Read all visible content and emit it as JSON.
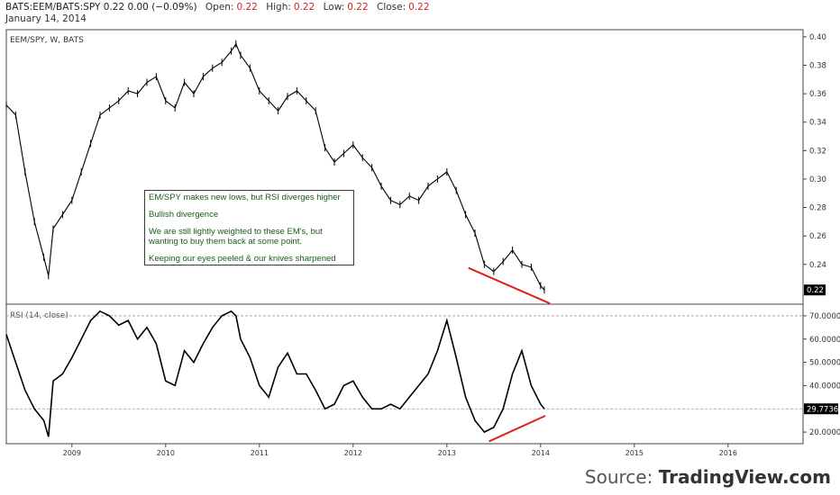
{
  "header": {
    "symbol_line": "BATS:EEM/BATS:SPY 0.22 0.00 (−0.09%)",
    "open_label": "Open:",
    "open_value": "0.22",
    "high_label": "High:",
    "high_value": "0.22",
    "low_label": "Low:",
    "low_value": "0.22",
    "close_label": "Close:",
    "close_value": "0.22",
    "date": "January 14, 2014"
  },
  "annotation": {
    "lines": [
      "EM/SPY makes new lows, but RSI diverges higher",
      "Bullish divergence",
      "We are still lightly weighted to these EM's, but wanting to buy them back at some point.",
      "Keeping our eyes peeled & our knives sharpened"
    ]
  },
  "source": {
    "prefix": "Source:",
    "brand": "TradingView.com"
  },
  "colors": {
    "price": "#000000",
    "rsi": "#000000",
    "trendline": "#e02020",
    "note_text": "#1a5c1a",
    "grid_dash": "#999999"
  },
  "chart_data": [
    {
      "type": "line",
      "title": "EEM/SPY, W, BATS",
      "x_ticks": [
        "2009",
        "2010",
        "2011",
        "2012",
        "2013",
        "2014",
        "2015",
        "2016"
      ],
      "y_ticks": [
        "0.40",
        "0.38",
        "0.36",
        "0.34",
        "0.32",
        "0.30",
        "0.28",
        "0.26",
        "0.24"
      ],
      "ylim": [
        0.212,
        0.405
      ],
      "last_value_label": "0.22",
      "x": [
        2008.3,
        2008.4,
        2008.5,
        2008.6,
        2008.7,
        2008.75,
        2008.8,
        2008.9,
        2009.0,
        2009.1,
        2009.2,
        2009.3,
        2009.4,
        2009.5,
        2009.6,
        2009.7,
        2009.8,
        2009.9,
        2010.0,
        2010.1,
        2010.2,
        2010.3,
        2010.4,
        2010.5,
        2010.6,
        2010.7,
        2010.75,
        2010.8,
        2010.9,
        2011.0,
        2011.1,
        2011.2,
        2011.3,
        2011.4,
        2011.5,
        2011.6,
        2011.7,
        2011.8,
        2011.9,
        2012.0,
        2012.1,
        2012.2,
        2012.3,
        2012.4,
        2012.5,
        2012.6,
        2012.7,
        2012.8,
        2012.9,
        2013.0,
        2013.1,
        2013.2,
        2013.3,
        2013.4,
        2013.5,
        2013.6,
        2013.7,
        2013.8,
        2013.9,
        2014.0,
        2014.04
      ],
      "series": [
        {
          "values": [
            0.352,
            0.345,
            0.305,
            0.27,
            0.245,
            0.232,
            0.265,
            0.275,
            0.285,
            0.305,
            0.325,
            0.345,
            0.35,
            0.355,
            0.362,
            0.36,
            0.368,
            0.372,
            0.355,
            0.35,
            0.368,
            0.36,
            0.372,
            0.378,
            0.382,
            0.39,
            0.395,
            0.387,
            0.378,
            0.362,
            0.355,
            0.348,
            0.358,
            0.362,
            0.355,
            0.348,
            0.322,
            0.312,
            0.318,
            0.324,
            0.315,
            0.308,
            0.295,
            0.285,
            0.282,
            0.288,
            0.285,
            0.295,
            0.3,
            0.305,
            0.292,
            0.275,
            0.262,
            0.24,
            0.235,
            0.242,
            0.25,
            0.24,
            0.238,
            0.225,
            0.222
          ]
        },
        {
          "name": "RSI (14, close)",
          "values": [
            62,
            50,
            38,
            30,
            25,
            18,
            42,
            45,
            52,
            60,
            68,
            72,
            70,
            66,
            68,
            60,
            65,
            58,
            42,
            40,
            55,
            50,
            58,
            65,
            70,
            72,
            70,
            60,
            52,
            40,
            35,
            48,
            54,
            45,
            45,
            38,
            30,
            32,
            40,
            42,
            35,
            30,
            30,
            32,
            30,
            35,
            40,
            45,
            55,
            68,
            52,
            35,
            25,
            20,
            22,
            30,
            45,
            55,
            40,
            32,
            30
          ]
        }
      ]
    },
    {
      "type": "line",
      "title": "RSI (14, close)",
      "y_ticks": [
        "70.0000",
        "60.0000",
        "50.0000",
        "40.0000",
        "20.0000"
      ],
      "ylim": [
        15,
        75
      ],
      "last_value_label": "29.7736",
      "reference_levels": [
        70,
        30
      ]
    }
  ]
}
